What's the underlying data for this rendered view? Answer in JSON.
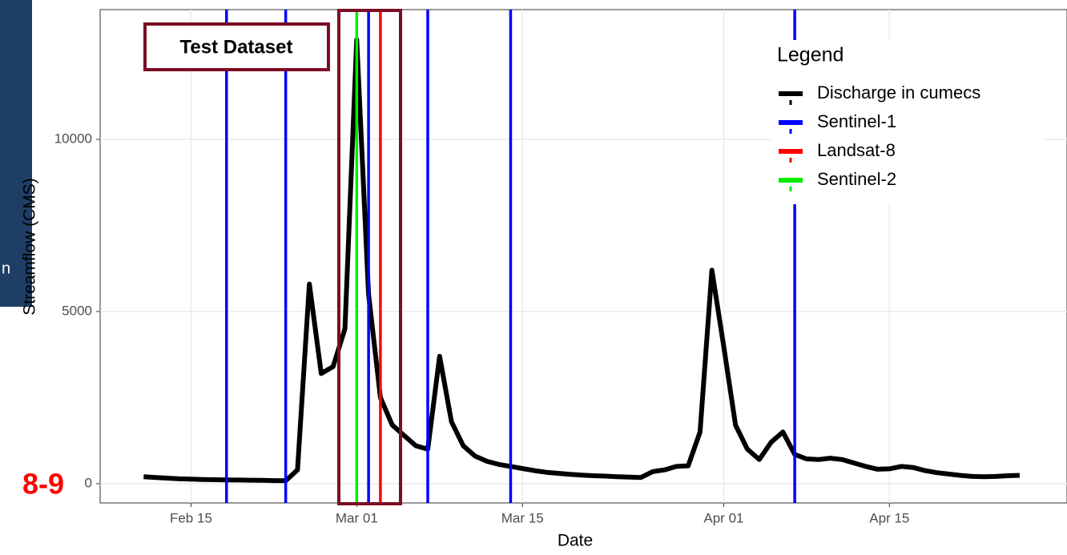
{
  "page": {
    "fragment_text": "n",
    "slide_label": "8-9"
  },
  "chart_data": {
    "type": "line",
    "x_label": "Date",
    "y_label": "Streamflow (CMS)",
    "legend_title": "Legend",
    "legend_position": "top-right",
    "grid": true,
    "xlim": [
      "Feb 08",
      "Apr 30"
    ],
    "xticks": [
      "Feb 15",
      "Mar 01",
      "Mar 15",
      "Apr 01",
      "Apr 15"
    ],
    "ylim": [
      -560,
      13770
    ],
    "yticks": [
      0,
      5000,
      10000
    ],
    "annotations": [
      {
        "text": "Test Dataset",
        "color": "#7b0d24"
      }
    ],
    "x": [
      "Feb 11",
      "Feb 12",
      "Feb 13",
      "Feb 14",
      "Feb 15",
      "Feb 16",
      "Feb 17",
      "Feb 18",
      "Feb 19",
      "Feb 20",
      "Feb 21",
      "Feb 22",
      "Feb 23",
      "Feb 24",
      "Feb 25",
      "Feb 26",
      "Feb 27",
      "Feb 28",
      "Mar 01",
      "Mar 02",
      "Mar 03",
      "Mar 04",
      "Mar 05",
      "Mar 06",
      "Mar 07",
      "Mar 08",
      "Mar 09",
      "Mar 10",
      "Mar 11",
      "Mar 12",
      "Mar 13",
      "Mar 14",
      "Mar 15",
      "Mar 16",
      "Mar 17",
      "Mar 18",
      "Mar 19",
      "Mar 20",
      "Mar 21",
      "Mar 22",
      "Mar 23",
      "Mar 24",
      "Mar 25",
      "Mar 26",
      "Mar 27",
      "Mar 28",
      "Mar 29",
      "Mar 30",
      "Mar 31",
      "Apr 01",
      "Apr 02",
      "Apr 03",
      "Apr 04",
      "Apr 05",
      "Apr 06",
      "Apr 07",
      "Apr 08",
      "Apr 09",
      "Apr 10",
      "Apr 11",
      "Apr 12",
      "Apr 13",
      "Apr 14",
      "Apr 15",
      "Apr 16",
      "Apr 17",
      "Apr 18",
      "Apr 19",
      "Apr 20",
      "Apr 21",
      "Apr 22",
      "Apr 23",
      "Apr 24",
      "Apr 25",
      "Apr 26"
    ],
    "series": [
      {
        "name": "Discharge in cumecs",
        "color": "#000000",
        "values": [
          200,
          180,
          160,
          140,
          130,
          120,
          115,
          110,
          105,
          100,
          95,
          90,
          85,
          400,
          5800,
          3200,
          3400,
          4500,
          12900,
          5500,
          2500,
          1700,
          1400,
          1100,
          1000,
          3700,
          1800,
          1100,
          800,
          650,
          560,
          500,
          440,
          380,
          330,
          300,
          270,
          250,
          230,
          220,
          200,
          190,
          180,
          350,
          400,
          500,
          520,
          1500,
          6200,
          4000,
          1700,
          1000,
          700,
          1200,
          1500,
          850,
          720,
          700,
          740,
          700,
          600,
          500,
          420,
          430,
          500,
          470,
          380,
          320,
          280,
          240,
          210,
          200,
          210,
          230,
          240
        ]
      }
    ],
    "vlines": [
      {
        "name": "Sentinel-1",
        "color": "#0000ff",
        "x": [
          "Feb 18",
          "Feb 23",
          "Mar 02",
          "Mar 07",
          "Mar 14",
          "Apr 07"
        ]
      },
      {
        "name": "Landsat-8",
        "color": "#ff0000",
        "x": [
          "Mar 03"
        ]
      },
      {
        "name": "Sentinel-2",
        "color": "#00ee00",
        "x": [
          "Mar 01"
        ]
      }
    ]
  }
}
